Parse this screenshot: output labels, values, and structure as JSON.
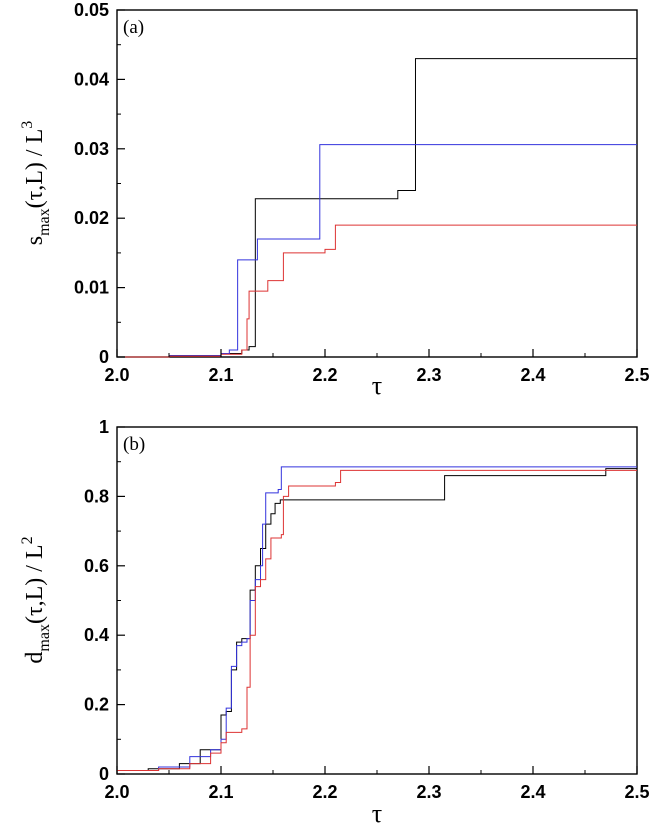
{
  "chart_data": [
    {
      "type": "line",
      "panel_label": "(a)",
      "xlabel": "τ",
      "ylabel": {
        "base": "s",
        "sub": "max",
        "rest": "(τ,L) / L",
        "sup": "3"
      },
      "xlim": [
        2.0,
        2.5
      ],
      "ylim": [
        0,
        0.05
      ],
      "xticks": [
        2.0,
        2.1,
        2.2,
        2.3,
        2.4,
        2.5
      ],
      "xtick_labels": [
        "2.0",
        "2.1",
        "2.2",
        "2.3",
        "2.4",
        "2.5"
      ],
      "yticks": [
        0,
        0.01,
        0.02,
        0.03,
        0.04,
        0.05
      ],
      "ytick_labels": [
        "0",
        "0.01",
        "0.02",
        "0.03",
        "0.04",
        "0.05"
      ],
      "grid": false,
      "series": [
        {
          "color": "#000000",
          "points": [
            [
              2.0,
              0
            ],
            [
              2.05,
              0.0002
            ],
            [
              2.1,
              0.0005
            ],
            [
              2.12,
              0.001
            ],
            [
              2.127,
              0.0015
            ],
            [
              2.133,
              0.0228
            ],
            [
              2.19,
              0.0228
            ],
            [
              2.27,
              0.023
            ],
            [
              2.27,
              0.024
            ],
            [
              2.287,
              0.024
            ],
            [
              2.287,
              0.043
            ],
            [
              2.5,
              0.043
            ]
          ]
        },
        {
          "color": "#3333dd",
          "points": [
            [
              2.0,
              0
            ],
            [
              2.05,
              0.0002
            ],
            [
              2.1,
              0.0005
            ],
            [
              2.108,
              0.001
            ],
            [
              2.116,
              0.002
            ],
            [
              2.116,
              0.014
            ],
            [
              2.127,
              0.014
            ],
            [
              2.135,
              0.017
            ],
            [
              2.19,
              0.017
            ],
            [
              2.195,
              0.0306
            ],
            [
              2.5,
              0.0306
            ]
          ]
        },
        {
          "color": "#dd3333",
          "points": [
            [
              2.0,
              0
            ],
            [
              2.05,
              0.0001
            ],
            [
              2.1,
              0.0004
            ],
            [
              2.12,
              0.001
            ],
            [
              2.125,
              0.0055
            ],
            [
              2.127,
              0.0095
            ],
            [
              2.145,
              0.0095
            ],
            [
              2.145,
              0.011
            ],
            [
              2.16,
              0.0115
            ],
            [
              2.16,
              0.015
            ],
            [
              2.2,
              0.0155
            ],
            [
              2.21,
              0.019
            ],
            [
              2.5,
              0.019
            ]
          ]
        }
      ]
    },
    {
      "type": "line",
      "panel_label": "(b)",
      "xlabel": "τ",
      "ylabel": {
        "base": "d",
        "sub": "max",
        "rest": "(τ,L) / L",
        "sup": "2"
      },
      "xlim": [
        2.0,
        2.5
      ],
      "ylim": [
        0,
        1
      ],
      "xticks": [
        2.0,
        2.1,
        2.2,
        2.3,
        2.4,
        2.5
      ],
      "xtick_labels": [
        "2.0",
        "2.1",
        "2.2",
        "2.3",
        "2.4",
        "2.5"
      ],
      "yticks": [
        0,
        0.2,
        0.4,
        0.6,
        0.8,
        1.0
      ],
      "ytick_labels": [
        "0",
        "0.2",
        "0.4",
        "0.6",
        "0.8",
        "1"
      ],
      "grid": false,
      "series": [
        {
          "color": "#000000",
          "points": [
            [
              2.0,
              0.01
            ],
            [
              2.03,
              0.015
            ],
            [
              2.06,
              0.03
            ],
            [
              2.08,
              0.07
            ],
            [
              2.1,
              0.17
            ],
            [
              2.105,
              0.18
            ],
            [
              2.11,
              0.3
            ],
            [
              2.115,
              0.38
            ],
            [
              2.12,
              0.39
            ],
            [
              2.128,
              0.53
            ],
            [
              2.133,
              0.6
            ],
            [
              2.138,
              0.65
            ],
            [
              2.143,
              0.72
            ],
            [
              2.148,
              0.75
            ],
            [
              2.152,
              0.78
            ],
            [
              2.157,
              0.79
            ],
            [
              2.31,
              0.79
            ],
            [
              2.315,
              0.86
            ],
            [
              2.46,
              0.86
            ],
            [
              2.47,
              0.88
            ],
            [
              2.5,
              0.885
            ]
          ]
        },
        {
          "color": "#3333dd",
          "points": [
            [
              2.0,
              0.01
            ],
            [
              2.04,
              0.02
            ],
            [
              2.07,
              0.05
            ],
            [
              2.09,
              0.07
            ],
            [
              2.1,
              0.1
            ],
            [
              2.105,
              0.19
            ],
            [
              2.11,
              0.31
            ],
            [
              2.115,
              0.37
            ],
            [
              2.12,
              0.38
            ],
            [
              2.125,
              0.39
            ],
            [
              2.128,
              0.5
            ],
            [
              2.133,
              0.56
            ],
            [
              2.138,
              0.6
            ],
            [
              2.14,
              0.72
            ],
            [
              2.143,
              0.81
            ],
            [
              2.155,
              0.82
            ],
            [
              2.158,
              0.885
            ],
            [
              2.5,
              0.885
            ]
          ]
        },
        {
          "color": "#dd3333",
          "points": [
            [
              2.0,
              0.01
            ],
            [
              2.04,
              0.015
            ],
            [
              2.07,
              0.03
            ],
            [
              2.09,
              0.06
            ],
            [
              2.1,
              0.09
            ],
            [
              2.105,
              0.12
            ],
            [
              2.12,
              0.13
            ],
            [
              2.125,
              0.25
            ],
            [
              2.128,
              0.4
            ],
            [
              2.133,
              0.54
            ],
            [
              2.138,
              0.56
            ],
            [
              2.143,
              0.62
            ],
            [
              2.148,
              0.68
            ],
            [
              2.158,
              0.69
            ],
            [
              2.16,
              0.8
            ],
            [
              2.165,
              0.83
            ],
            [
              2.21,
              0.84
            ],
            [
              2.215,
              0.875
            ],
            [
              2.5,
              0.875
            ]
          ]
        }
      ]
    }
  ]
}
